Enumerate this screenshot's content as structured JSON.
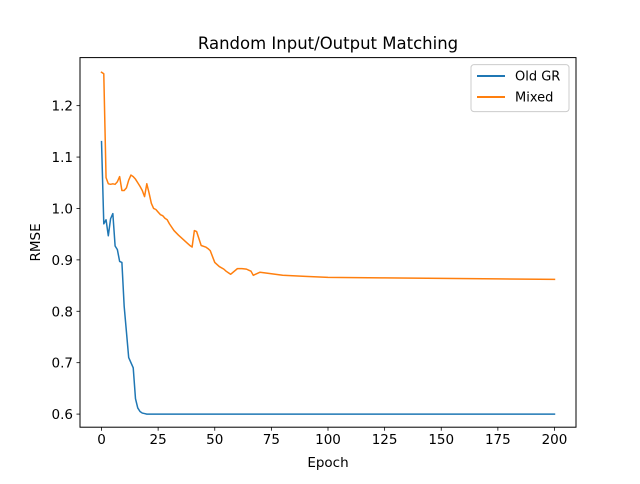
{
  "chart_data": {
    "type": "line",
    "title": "Random Input/Output Matching",
    "xlabel": "Epoch",
    "ylabel": "RMSE",
    "xlim": [
      -9.5,
      209.5
    ],
    "ylim": [
      0.5745,
      1.2935
    ],
    "xticks": [
      0,
      25,
      50,
      75,
      100,
      125,
      150,
      175,
      200
    ],
    "xtick_labels": [
      "0",
      "25",
      "50",
      "75",
      "100",
      "125",
      "150",
      "175",
      "200"
    ],
    "yticks": [
      0.6,
      0.7,
      0.8,
      0.9,
      1.0,
      1.1,
      1.2
    ],
    "ytick_labels": [
      "0.6",
      "0.7",
      "0.8",
      "0.9",
      "1.0",
      "1.1",
      "1.2"
    ],
    "grid": false,
    "legend_position": "upper right",
    "series": [
      {
        "name": "Old GR",
        "color": "#1f77b4",
        "x": [
          0,
          1,
          2,
          3,
          4,
          5,
          6,
          7,
          8,
          9,
          10,
          11,
          12,
          13,
          14,
          15,
          16,
          17,
          18,
          19,
          20,
          22,
          25,
          30,
          50,
          100,
          150,
          200
        ],
        "y": [
          1.13,
          0.97,
          0.978,
          0.947,
          0.98,
          0.99,
          0.927,
          0.92,
          0.897,
          0.895,
          0.81,
          0.76,
          0.71,
          0.7,
          0.69,
          0.63,
          0.612,
          0.605,
          0.602,
          0.601,
          0.6,
          0.6,
          0.6,
          0.6,
          0.6,
          0.6,
          0.6,
          0.6
        ]
      },
      {
        "name": "Mixed",
        "color": "#ff7f0e",
        "x": [
          0,
          1,
          2,
          3,
          4,
          5,
          6,
          7,
          8,
          9,
          10,
          11,
          12,
          13,
          14,
          15,
          16,
          17,
          18,
          19,
          20,
          21,
          22,
          23,
          24,
          25,
          26,
          27,
          28,
          29,
          30,
          32,
          34,
          36,
          38,
          39,
          40,
          41,
          42,
          44,
          46,
          47,
          48,
          50,
          52,
          54,
          55,
          56,
          57,
          60,
          62,
          64,
          65,
          66,
          67,
          70,
          75,
          80,
          90,
          100,
          125,
          150,
          175,
          200
        ],
        "y": [
          1.265,
          1.262,
          1.06,
          1.048,
          1.047,
          1.048,
          1.047,
          1.052,
          1.062,
          1.035,
          1.035,
          1.04,
          1.055,
          1.065,
          1.062,
          1.057,
          1.05,
          1.043,
          1.035,
          1.023,
          1.048,
          1.03,
          1.01,
          1.0,
          0.998,
          0.993,
          0.988,
          0.986,
          0.981,
          0.978,
          0.97,
          0.957,
          0.948,
          0.94,
          0.932,
          0.928,
          0.925,
          0.957,
          0.955,
          0.928,
          0.925,
          0.922,
          0.918,
          0.895,
          0.887,
          0.882,
          0.878,
          0.875,
          0.872,
          0.883,
          0.883,
          0.882,
          0.88,
          0.878,
          0.87,
          0.876,
          0.873,
          0.87,
          0.868,
          0.866,
          0.865,
          0.864,
          0.863,
          0.862
        ]
      }
    ]
  }
}
